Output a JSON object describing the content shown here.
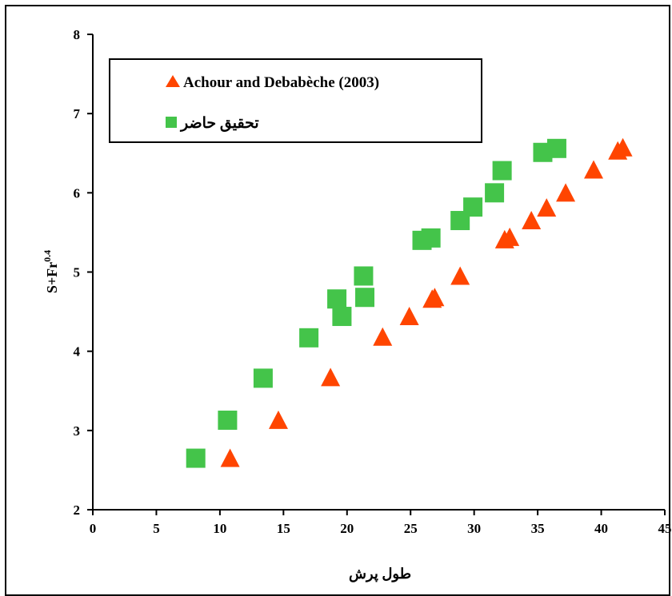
{
  "chart_data": {
    "type": "scatter",
    "title": "",
    "xlabel": "طول پرش",
    "ylabel_base": "S+Fr",
    "ylabel_exp": "0.4",
    "xlim": [
      0,
      45
    ],
    "ylim": [
      2,
      8
    ],
    "xticks": [
      "0",
      "5",
      "10",
      "15",
      "20",
      "25",
      "30",
      "35",
      "40",
      "45"
    ],
    "yticks": [
      "2",
      "3",
      "4",
      "5",
      "6",
      "7",
      "8"
    ],
    "grid": false,
    "legend_position": "top-left",
    "series": [
      {
        "name": "Achour and Debabèche (2003)",
        "marker": "triangle",
        "color": "#ff4500",
        "points": [
          [
            10.8,
            2.63
          ],
          [
            14.6,
            3.11
          ],
          [
            18.7,
            3.65
          ],
          [
            22.8,
            4.16
          ],
          [
            24.9,
            4.42
          ],
          [
            26.7,
            4.64
          ],
          [
            26.9,
            4.66
          ],
          [
            28.9,
            4.93
          ],
          [
            32.4,
            5.39
          ],
          [
            32.8,
            5.42
          ],
          [
            34.5,
            5.63
          ],
          [
            35.7,
            5.79
          ],
          [
            37.2,
            5.98
          ],
          [
            39.4,
            6.27
          ],
          [
            41.3,
            6.51
          ],
          [
            41.7,
            6.55
          ]
        ]
      },
      {
        "name": "تحقیق حاضر",
        "marker": "square",
        "color": "#44c44a",
        "points": [
          [
            8.1,
            2.65
          ],
          [
            10.6,
            3.13
          ],
          [
            13.4,
            3.66
          ],
          [
            17.0,
            4.17
          ],
          [
            19.2,
            4.66
          ],
          [
            19.6,
            4.44
          ],
          [
            21.3,
            4.95
          ],
          [
            21.4,
            4.68
          ],
          [
            25.9,
            5.4
          ],
          [
            26.6,
            5.43
          ],
          [
            28.9,
            5.65
          ],
          [
            29.9,
            5.82
          ],
          [
            31.6,
            6.0
          ],
          [
            32.2,
            6.28
          ],
          [
            35.4,
            6.51
          ],
          [
            36.5,
            6.56
          ]
        ]
      }
    ]
  }
}
